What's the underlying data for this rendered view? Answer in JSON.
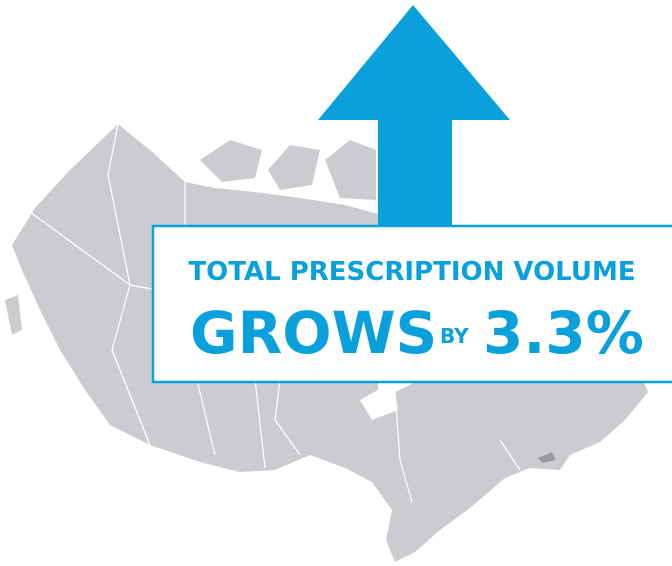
{
  "headline": {
    "line1": "TOTAL PRESCRIPTION VOLUME",
    "verb": "GROWS",
    "preposition": "BY",
    "figure": "3.3%"
  }
}
